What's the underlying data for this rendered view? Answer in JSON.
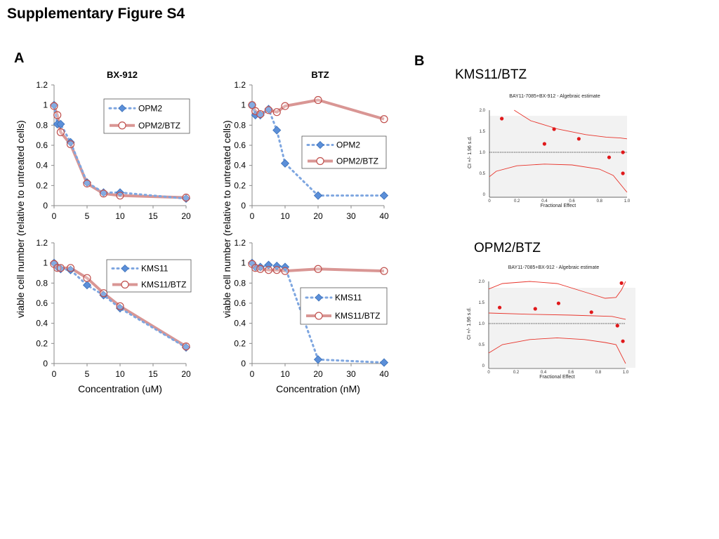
{
  "page": {
    "title": "Supplementary Figure S4",
    "panel_a": "A",
    "panel_b": "B",
    "ylabel": "viable cell number (relative to untreated cells)"
  },
  "colors": {
    "series_blue": "#4f81bd",
    "series_blue_marker": "#5b8fd9",
    "series_red": "#d99694",
    "series_red_marker": "#c0504d",
    "ci_line": "#e8332a",
    "ci_point": "#e0191b",
    "ci_bg": "#f2f2f2"
  },
  "chart_data": [
    {
      "type": "line",
      "title": "BX-912",
      "xlabel": "",
      "ylabel": "viable cell number (relative to untreated cells)",
      "xlim": [
        0,
        20
      ],
      "ylim": [
        0,
        1.2
      ],
      "xticks": [
        "0",
        "5",
        "10",
        "15",
        "20"
      ],
      "yticks": [
        "0",
        "0.2",
        "0.4",
        "0.6",
        "0.8",
        "1",
        "1.2"
      ],
      "legend": "top-right",
      "series": [
        {
          "name": "OPM2",
          "style": "dotted-diamond",
          "x": [
            0,
            0.5,
            1,
            2.5,
            5,
            7.5,
            10,
            20
          ],
          "y": [
            1.0,
            0.81,
            0.81,
            0.63,
            0.23,
            0.13,
            0.13,
            0.07
          ]
        },
        {
          "name": "OPM2/BTZ",
          "style": "solid-circle",
          "x": [
            0,
            0.5,
            1,
            2.5,
            5,
            7.5,
            10,
            20
          ],
          "y": [
            0.99,
            0.9,
            0.73,
            0.61,
            0.22,
            0.12,
            0.1,
            0.08
          ]
        }
      ]
    },
    {
      "type": "line",
      "title": "BTZ",
      "xlabel": "",
      "ylabel": "",
      "xlim": [
        0,
        40
      ],
      "ylim": [
        0,
        1.2
      ],
      "xticks": [
        "0",
        "10",
        "20",
        "30",
        "40"
      ],
      "yticks": [
        "0",
        "0.2",
        "0.4",
        "0.6",
        "0.8",
        "1",
        "1.2"
      ],
      "legend": "right",
      "series": [
        {
          "name": "OPM2",
          "style": "dotted-diamond",
          "x": [
            0,
            1,
            2.5,
            5,
            7.5,
            10,
            20,
            40
          ],
          "y": [
            1.0,
            0.9,
            0.9,
            0.96,
            0.75,
            0.42,
            0.1,
            0.1
          ]
        },
        {
          "name": "OPM2/BTZ",
          "style": "solid-circle",
          "x": [
            0,
            1,
            2.5,
            5,
            7.5,
            10,
            20,
            40
          ],
          "y": [
            1.0,
            0.94,
            0.91,
            0.95,
            0.93,
            0.99,
            1.05,
            0.86
          ]
        }
      ]
    },
    {
      "type": "line",
      "title": "",
      "xlabel": "Concentration (uM)",
      "ylabel": "viable cell number (relative to untreated cells)",
      "xlim": [
        0,
        20
      ],
      "ylim": [
        0,
        1.2
      ],
      "xticks": [
        "0",
        "5",
        "10",
        "15",
        "20"
      ],
      "yticks": [
        "0",
        "0.2",
        "0.4",
        "0.6",
        "0.8",
        "1",
        "1.2"
      ],
      "legend": "top-right",
      "series": [
        {
          "name": "KMS11",
          "style": "dotted-diamond",
          "x": [
            0,
            0.5,
            1,
            2.5,
            5,
            7.5,
            10,
            20
          ],
          "y": [
            1.0,
            0.96,
            0.94,
            0.93,
            0.78,
            0.68,
            0.55,
            0.16
          ]
        },
        {
          "name": "KMS11/BTZ",
          "style": "solid-circle",
          "x": [
            0,
            0.5,
            1,
            2.5,
            5,
            7.5,
            10,
            20
          ],
          "y": [
            0.99,
            0.95,
            0.95,
            0.95,
            0.85,
            0.7,
            0.57,
            0.17
          ]
        }
      ]
    },
    {
      "type": "line",
      "title": "",
      "xlabel": "Concentration (nM)",
      "ylabel": "viable cell number (relative to untreated cells)",
      "xlim": [
        0,
        40
      ],
      "ylim": [
        0,
        1.2
      ],
      "xticks": [
        "0",
        "10",
        "20",
        "30",
        "40"
      ],
      "yticks": [
        "0",
        "0.2",
        "0.4",
        "0.6",
        "0.8",
        "1",
        "1.2"
      ],
      "legend": "right",
      "series": [
        {
          "name": "KMS11",
          "style": "dotted-diamond",
          "x": [
            0,
            1,
            2.5,
            5,
            7.5,
            10,
            20,
            40
          ],
          "y": [
            1.0,
            0.96,
            0.96,
            0.98,
            0.97,
            0.96,
            0.04,
            0.01
          ]
        },
        {
          "name": "KMS11/BTZ",
          "style": "solid-circle",
          "x": [
            0,
            1,
            2.5,
            5,
            7.5,
            10,
            20,
            40
          ],
          "y": [
            0.99,
            0.95,
            0.94,
            0.93,
            0.93,
            0.92,
            0.94,
            0.92
          ]
        }
      ]
    },
    {
      "type": "scatter",
      "title": "BAY11-7085+BX-912 - Algebraic estimate",
      "heading": "KMS11/BTZ",
      "xlabel": "Fractional Effect",
      "ylabel": "CI +/- 1.96 s.d.",
      "xlim": [
        0,
        1
      ],
      "ylim": [
        0,
        2
      ],
      "xticks": [
        "0",
        "0.2",
        "0.4",
        "0.6",
        "0.8",
        "1.0"
      ],
      "yticks": [
        "0",
        "0.5",
        "1.0",
        "1.5",
        "2.0"
      ],
      "reference_line": 1.0,
      "points": {
        "x": [
          0.09,
          0.4,
          0.47,
          0.65,
          0.87,
          0.97,
          0.97
        ],
        "y": [
          1.8,
          1.2,
          1.55,
          1.32,
          0.88,
          1.0,
          0.5
        ]
      },
      "upper_band": {
        "x": [
          0.18,
          0.3,
          0.5,
          0.7,
          0.85,
          0.95,
          1.0
        ],
        "y": [
          2.0,
          1.75,
          1.55,
          1.42,
          1.36,
          1.34,
          1.32
        ]
      },
      "lower_band": {
        "x": [
          0.0,
          0.05,
          0.2,
          0.4,
          0.6,
          0.8,
          0.9,
          1.0
        ],
        "y": [
          0.42,
          0.55,
          0.68,
          0.72,
          0.7,
          0.6,
          0.45,
          0.05
        ]
      }
    },
    {
      "type": "scatter",
      "title": "BAY11-7085+BX-912 - Algebraic estimate",
      "heading": "OPM2/BTZ",
      "xlabel": "Fractional Effect",
      "ylabel": "CI +/- 1.96 s.d.",
      "xlim": [
        0,
        1
      ],
      "ylim": [
        0,
        2
      ],
      "xticks": [
        "0",
        "0.2",
        "0.4",
        "0.6",
        "0.8",
        "1.0"
      ],
      "yticks": [
        "0",
        "0.5",
        "1.0",
        "1.5",
        "2.0"
      ],
      "reference_line": 1.0,
      "points": {
        "x": [
          0.08,
          0.34,
          0.51,
          0.75,
          0.94,
          0.97,
          0.98
        ],
        "y": [
          1.38,
          1.35,
          1.48,
          1.27,
          0.95,
          1.96,
          0.58
        ]
      },
      "upper_band": {
        "x": [
          0.0,
          0.1,
          0.3,
          0.5,
          0.7,
          0.85,
          0.93,
          0.97,
          1.0
        ],
        "y": [
          1.82,
          1.95,
          2.0,
          1.95,
          1.75,
          1.6,
          1.62,
          1.8,
          2.0
        ]
      },
      "lower_band": {
        "x": [
          0.0,
          0.1,
          0.3,
          0.5,
          0.7,
          0.85,
          0.93,
          1.0
        ],
        "y": [
          0.3,
          0.5,
          0.62,
          0.66,
          0.62,
          0.55,
          0.5,
          0.05
        ]
      },
      "mid_band": {
        "x": [
          0.0,
          0.3,
          0.6,
          0.9,
          1.0
        ],
        "y": [
          1.25,
          1.22,
          1.2,
          1.17,
          1.1
        ]
      }
    }
  ]
}
